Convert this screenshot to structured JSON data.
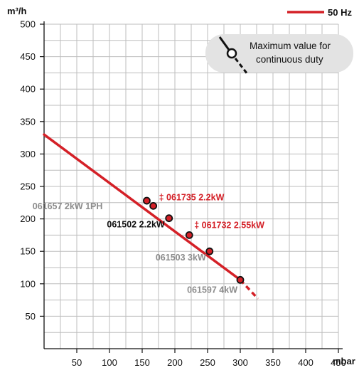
{
  "chart_data": {
    "type": "line",
    "y_unit": "m³/h",
    "x_unit": "mbar",
    "xlim": [
      0,
      450
    ],
    "ylim": [
      0,
      500
    ],
    "x_ticks": [
      50,
      100,
      150,
      200,
      250,
      300,
      350,
      400,
      450
    ],
    "y_ticks": [
      50,
      100,
      150,
      200,
      250,
      300,
      350,
      400,
      450,
      500
    ],
    "grid": true,
    "legend": {
      "label": "50 Hz",
      "color": "#d42027",
      "position": "top-right"
    },
    "series": [
      {
        "name": "50 Hz",
        "color": "#d42027",
        "solid": [
          [
            0,
            330
          ],
          [
            300,
            106
          ]
        ],
        "dashed": [
          [
            300,
            106
          ],
          [
            327,
            77
          ]
        ],
        "duty_points": [
          {
            "x": 157,
            "y": 228,
            "label": "061657 2kW 1PH",
            "label_color": "#8c8c8c"
          },
          {
            "x": 167,
            "y": 220,
            "label": "‡ 061735 2.2kW",
            "label_color": "#d42027"
          },
          {
            "x": 191,
            "y": 201,
            "label": "061502 2.2kW",
            "label_color": "#111111"
          },
          {
            "x": 222,
            "y": 175,
            "label": "‡ 061732 2.55kW",
            "label_color": "#d42027"
          },
          {
            "x": 253,
            "y": 150,
            "label": "061503 3kW",
            "label_color": "#8c8c8c"
          },
          {
            "x": 300,
            "y": 106,
            "label": "061597 4kW",
            "label_color": "#8c8c8c"
          }
        ]
      }
    ],
    "callout": {
      "line1": "Maximum value for",
      "line2": "continuous duty"
    }
  }
}
